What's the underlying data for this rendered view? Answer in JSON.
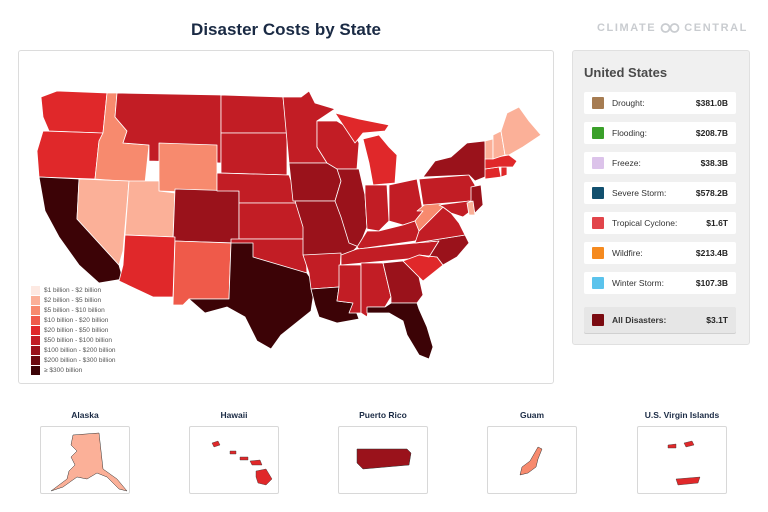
{
  "title": "Disaster Costs by State",
  "logo": {
    "left": "CLIMATE",
    "right": "CENTRAL"
  },
  "legend": [
    {
      "label": "$1 billion - $2 billion",
      "color": "#fde9e2"
    },
    {
      "label": "$2 billion - $5 billion",
      "color": "#fbb098"
    },
    {
      "label": "$5 billion - $10 billion",
      "color": "#f78a6e"
    },
    {
      "label": "$10 billion - $20 billion",
      "color": "#ef5a4a"
    },
    {
      "label": "$20 billion - $50 billion",
      "color": "#e0282a"
    },
    {
      "label": "$50 billion - $100 billion",
      "color": "#c21d25"
    },
    {
      "label": "$100 billion - $200 billion",
      "color": "#9a121b"
    },
    {
      "label": "$200 billion - $300 billion",
      "color": "#6b0a10"
    },
    {
      "label": "≥ $300 billion",
      "color": "#3c0306"
    }
  ],
  "panel": {
    "title": "United States",
    "items": [
      {
        "label": "Drought:",
        "value": "$381.0B",
        "color": "#a67c52"
      },
      {
        "label": "Flooding:",
        "value": "$208.7B",
        "color": "#3aa02a"
      },
      {
        "label": "Freeze:",
        "value": "$38.3B",
        "color": "#dcc3ea"
      },
      {
        "label": "Severe Storm:",
        "value": "$578.2B",
        "color": "#12506e"
      },
      {
        "label": "Tropical Cyclone:",
        "value": "$1.6T",
        "color": "#e2454b"
      },
      {
        "label": "Wildfire:",
        "value": "$213.4B",
        "color": "#f58a1f"
      },
      {
        "label": "Winter Storm:",
        "value": "$107.3B",
        "color": "#5bc3ec"
      }
    ],
    "total": {
      "label": "All Disasters:",
      "value": "$3.1T",
      "color": "#7a0a10"
    }
  },
  "territories": [
    {
      "name": "Alaska",
      "color": "#fbb098"
    },
    {
      "name": "Hawaii",
      "color": "#e0282a"
    },
    {
      "name": "Puerto Rico",
      "color": "#9a121b"
    },
    {
      "name": "Guam",
      "color": "#f78a6e"
    },
    {
      "name": "U.S. Virgin Islands",
      "color": "#e0282a"
    }
  ]
}
